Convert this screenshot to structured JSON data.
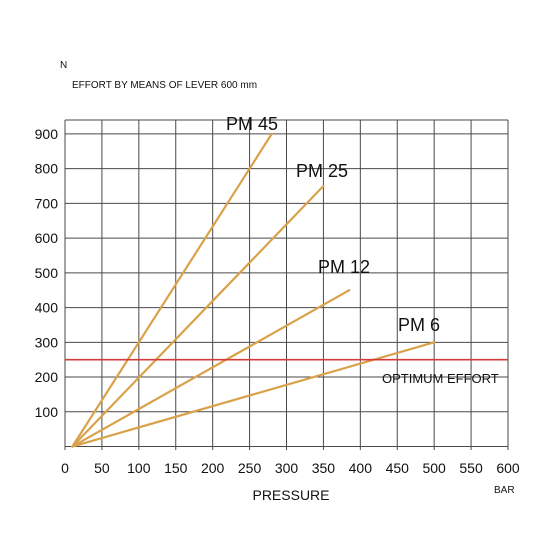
{
  "chart_data": {
    "type": "line",
    "title": "EFFORT BY MEANS OF LEVER 600 mm",
    "y_unit": "N",
    "xlabel": "PRESSURE",
    "x_unit": "BAR",
    "xlim": [
      0,
      600
    ],
    "ylim": [
      -10,
      940
    ],
    "x_ticks": [
      0,
      50,
      100,
      150,
      200,
      250,
      300,
      350,
      400,
      450,
      500,
      550,
      600
    ],
    "y_ticks": [
      100,
      200,
      300,
      400,
      500,
      600,
      700,
      800,
      900
    ],
    "grid": true,
    "series": [
      {
        "name": "PM 45",
        "x": [
          10,
          280
        ],
        "y": [
          0,
          900
        ]
      },
      {
        "name": "PM 25",
        "x": [
          10,
          350
        ],
        "y": [
          0,
          750
        ]
      },
      {
        "name": "PM 12",
        "x": [
          10,
          385
        ],
        "y": [
          0,
          450
        ]
      },
      {
        "name": "PM 6",
        "x": [
          10,
          500
        ],
        "y": [
          0,
          300
        ]
      }
    ],
    "reference_line": {
      "label": "OPTIMUM EFFORT",
      "y": 250
    },
    "colors": {
      "series": "#D9A24A",
      "reference": "#D43B3B",
      "grid": "#4A4A4A"
    }
  }
}
